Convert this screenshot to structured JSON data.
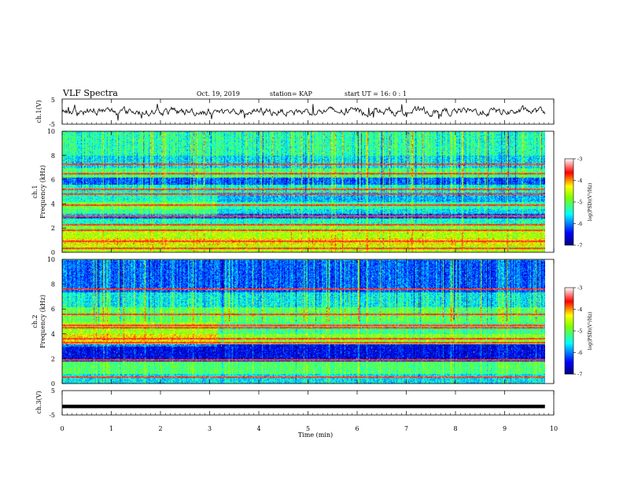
{
  "header": {
    "title": "VLF Spectra",
    "date": "Oct. 19, 2019",
    "station": "station= KAP",
    "start_time": "start  UT =   16: 0  : 1"
  },
  "colors": {
    "waveform": "#000000",
    "colormap": [
      "#00007f",
      "#0000ff",
      "#00ffff",
      "#7fff00",
      "#ffff00",
      "#ff0000",
      "#ffffff"
    ]
  },
  "chart_data": [
    {
      "id": "ch1-waveform",
      "type": "line",
      "ylabel": "ch.1(V)",
      "ylim": [
        -5,
        5
      ],
      "yticks": [
        "5",
        "-5"
      ],
      "xlim": [
        0,
        10
      ],
      "note": "noisy time series oscillating about 0"
    },
    {
      "id": "ch1-spectrogram",
      "type": "heatmap",
      "ylabel": "ch.1\nFrequency (kHz)",
      "ylabel_lines": [
        "ch.1",
        "Frequency (kHz)"
      ],
      "ylim": [
        0,
        10
      ],
      "yticks": [
        "0",
        "2",
        "4",
        "6",
        "8",
        "10"
      ],
      "xlim": [
        0,
        10
      ],
      "colorbar": {
        "label": "log(PSD)(V²/Hz)",
        "range": [
          -7,
          -3
        ],
        "ticks": [
          "-3",
          "-4",
          "-5",
          "-6",
          "-7"
        ]
      },
      "band_levels": [
        {
          "f": [
            0.0,
            0.6
          ],
          "level": -4.6
        },
        {
          "f": [
            0.6,
            1.2
          ],
          "level": -4.3
        },
        {
          "f": [
            1.2,
            1.8
          ],
          "level": -4.6
        },
        {
          "f": [
            1.8,
            2.4
          ],
          "level": -4.9
        },
        {
          "f": [
            2.4,
            2.8
          ],
          "level": -5.4
        },
        {
          "f": [
            2.8,
            3.2
          ],
          "level": -6.2
        },
        {
          "f": [
            3.2,
            3.6
          ],
          "level": -5.6
        },
        {
          "f": [
            3.6,
            4.2
          ],
          "level": -5.3
        },
        {
          "f": [
            4.2,
            5.0
          ],
          "level": -5.8
        },
        {
          "f": [
            5.0,
            5.6
          ],
          "level": -5.4
        },
        {
          "f": [
            5.6,
            6.2
          ],
          "level": -6.1
        },
        {
          "f": [
            6.2,
            7.0
          ],
          "level": -5.1
        },
        {
          "f": [
            7.0,
            8.0
          ],
          "level": -5.6
        },
        {
          "f": [
            8.0,
            10.0
          ],
          "level": -5.3
        }
      ],
      "lines_khz": [
        0.3,
        0.9,
        1.8,
        2.3,
        3.0,
        3.9,
        4.8,
        5.2,
        6.5,
        7.3
      ]
    },
    {
      "id": "ch2-spectrogram",
      "type": "heatmap",
      "ylabel": "ch.2\nFrequency (kHz)",
      "ylabel_lines": [
        "ch.2",
        "Frequency (kHz)"
      ],
      "ylim": [
        0,
        10
      ],
      "yticks": [
        "0",
        "2",
        "4",
        "6",
        "8",
        "10"
      ],
      "xlim": [
        0,
        10
      ],
      "colorbar": {
        "label": "log(PSD)(V²/Hz)",
        "range": [
          -7,
          -3
        ],
        "ticks": [
          "-3",
          "-4",
          "-5",
          "-6",
          "-7"
        ]
      },
      "band_levels": [
        {
          "f": [
            0.0,
            0.8
          ],
          "level": -5.6
        },
        {
          "f": [
            0.8,
            1.8
          ],
          "level": -5.1
        },
        {
          "f": [
            1.8,
            3.2
          ],
          "level": -6.5
        },
        {
          "f": [
            3.2,
            4.0
          ],
          "level": -4.8
        },
        {
          "f": [
            4.0,
            5.0
          ],
          "level": -5.2
        },
        {
          "f": [
            5.0,
            6.2
          ],
          "level": -5.0
        },
        {
          "f": [
            6.2,
            7.4
          ],
          "level": -5.5
        },
        {
          "f": [
            7.4,
            10.0
          ],
          "level": -6.1
        }
      ],
      "lines_khz": [
        0.5,
        1.9,
        3.3,
        3.6,
        4.5,
        4.7,
        5.6,
        7.6
      ]
    },
    {
      "id": "ch3-waveform",
      "type": "line",
      "ylabel": "ch.3(V)",
      "ylim": [
        -5,
        5
      ],
      "yticks": [
        "5",
        "-5"
      ],
      "xlim": [
        0,
        10
      ],
      "constant_value": -1.5
    }
  ],
  "xaxis": {
    "label": "Time (min)",
    "ticks": [
      "0",
      "1",
      "2",
      "3",
      "4",
      "5",
      "6",
      "7",
      "8",
      "9",
      "10"
    ]
  }
}
